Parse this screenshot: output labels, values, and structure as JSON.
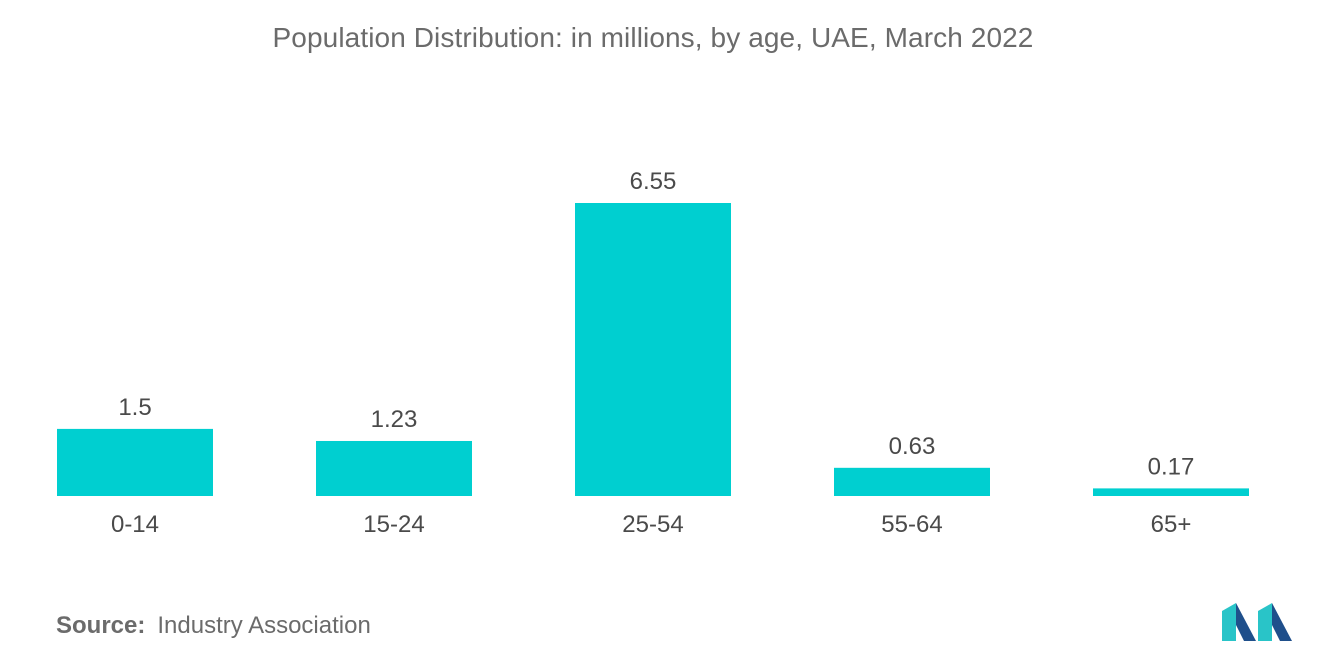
{
  "chart_data": {
    "type": "bar",
    "title": "Population Distribution: in millions, by age, UAE, March 2022",
    "categories": [
      "0-14",
      "15-24",
      "25-54",
      "55-64",
      "65+"
    ],
    "values": [
      1.5,
      1.23,
      6.55,
      0.63,
      0.17
    ],
    "value_labels": [
      "1.5",
      "1.23",
      "6.55",
      "0.63",
      "0.17"
    ],
    "xlabel": "",
    "ylabel": "",
    "ylim": [
      0,
      6.55
    ],
    "grid": false,
    "legend": "none",
    "bar_color": "#00cfd0"
  },
  "source": {
    "label": "Source:",
    "text": "Industry Association"
  },
  "logo": {
    "icon": "mordor-logo-icon",
    "color_dark": "#1f4f8b",
    "color_light": "#29c4c8"
  }
}
